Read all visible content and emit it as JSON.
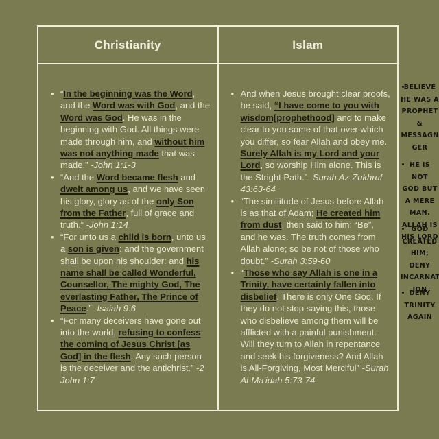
{
  "colors": {
    "background_olive": "#7b7b52",
    "border_cream": "#f1eedb",
    "body_text_cream": "#e9e6cf",
    "emphasis_dark": "#1e1e10",
    "annotation_black": "#141410"
  },
  "table": {
    "columns": [
      {
        "header": "Christianity",
        "bullets": [
          {
            "segments": [
              {
                "s": "r",
                "t": "“"
              },
              {
                "s": "b",
                "t": "In the beginning was the Word"
              },
              {
                "s": "r",
                "t": ", and the "
              },
              {
                "s": "b",
                "t": "Word was with God"
              },
              {
                "s": "r",
                "t": ", and the "
              },
              {
                "s": "b",
                "t": "Word was God"
              },
              {
                "s": "r",
                "t": ". He was in the beginning with God. All things were made through him, and "
              },
              {
                "s": "b",
                "t": "without him was not anything made"
              },
              {
                "s": "r",
                "t": " that was made.” "
              },
              {
                "s": "i",
                "t": "-John 1:1-3"
              }
            ]
          },
          {
            "segments": [
              {
                "s": "r",
                "t": "“And the "
              },
              {
                "s": "b",
                "t": "Word became flesh"
              },
              {
                "s": "r",
                "t": " and "
              },
              {
                "s": "b",
                "t": "dwelt among us"
              },
              {
                "s": "r",
                "t": ", and we have seen his glory, glory as of the "
              },
              {
                "s": "b",
                "t": "only Son from the Father"
              },
              {
                "s": "r",
                "t": ", full of grace and truth.” "
              },
              {
                "s": "i",
                "t": "-John 1:14"
              }
            ]
          },
          {
            "segments": [
              {
                "s": "r",
                "t": "“For unto us a "
              },
              {
                "s": "b",
                "t": "child is born"
              },
              {
                "s": "r",
                "t": ", unto us a "
              },
              {
                "s": "b",
                "t": "son is given"
              },
              {
                "s": "r",
                "t": ": and the government shall be upon his shoulder: and "
              },
              {
                "s": "b",
                "t": "his name shall be called Wonderful, Counsellor, The mighty God, The everlasting Father, The Prince of Peace"
              },
              {
                "s": "r",
                "t": ".” "
              },
              {
                "s": "i",
                "t": "-Isaiah 9:6"
              }
            ]
          },
          {
            "segments": [
              {
                "s": "r",
                "t": "“For many deceivers have gone out into the world, "
              },
              {
                "s": "b",
                "t": "refusing to confess the coming of Jesus Christ [as God] in the flesh"
              },
              {
                "s": "r",
                "t": ". Any such person is the deceiver and the antichrist.” "
              },
              {
                "s": "i",
                "t": "-2 John 1:7"
              }
            ]
          }
        ]
      },
      {
        "header": "Islam",
        "bullets": [
          {
            "segments": [
              {
                "s": "r",
                "t": "And when Jesus brought clear proofs, he said, "
              },
              {
                "s": "b",
                "t": "“I have come to you with wisdom[prophethood]"
              },
              {
                "s": "r",
                "t": " and to make clear to you some of that over which you differ, so fear Allah and obey me. "
              },
              {
                "s": "b",
                "t": "Surely Allah is my Lord and your Lord"
              },
              {
                "s": "r",
                "t": ", so worship Him alone. This is the Stright Path.” "
              },
              {
                "s": "i",
                "t": "-Surah Az-Zukhruf 43:63-64"
              }
            ]
          },
          {
            "segments": [
              {
                "s": "r",
                "t": "“The similitude of Jesus before Allah is as that of Adam; "
              },
              {
                "s": "b",
                "t": "He created him from dust"
              },
              {
                "s": "r",
                "t": ", then said to him: “Be”, and he was. The truth comes from Allah alone; so be not of those who doubt.” "
              },
              {
                "s": "i",
                "t": "-Surah 3:59-60"
              }
            ]
          },
          {
            "segments": [
              {
                "s": "r",
                "t": "“"
              },
              {
                "s": "b",
                "t": "Those who say Allah is one in a Trinity, have certainly fallen into disbelief"
              },
              {
                "s": "r",
                "t": ". There is only One God. If they do not stop saying this, those who disbelieve among them will be afflicted with a painful punishment. Will they turn to Allah in repentance and seek his forgiveness? And Allah is All-Forgiving, Most Merciful” "
              },
              {
                "s": "i",
                "t": "-Surah Al-Ma'idah 5:73-74"
              }
            ]
          }
        ]
      }
    ]
  },
  "annotations": {
    "items": [
      {
        "lines": [
          "BELIEVE",
          "HE WAS A",
          "PROPHET",
          "&",
          "MESSAGN",
          "GER"
        ]
      },
      {
        "lines": [
          "HE IS NOT",
          "GOD BUT",
          "A MERE",
          "MAN.",
          "ALLAH IS",
          "HIS LORD"
        ]
      },
      {
        "lines": [
          "GOD",
          "CREATED",
          "HIM; DENY",
          "INCARNAT",
          "ION"
        ]
      },
      {
        "lines": [
          "DENY",
          "TRINITY",
          "AGAIN"
        ]
      }
    ]
  }
}
